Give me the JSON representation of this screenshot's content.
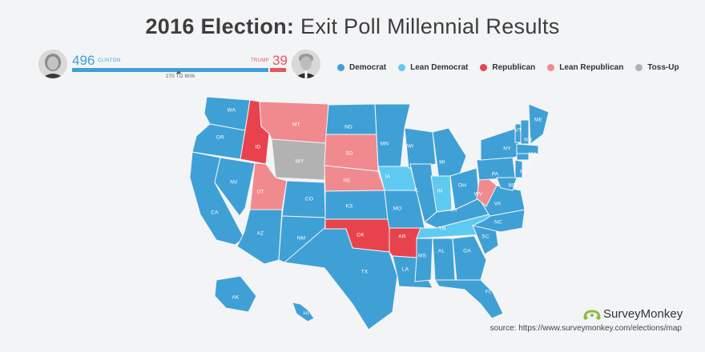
{
  "title": {
    "bold": "2016 Election:",
    "rest": "Exit Poll Millennial Results"
  },
  "tally": {
    "clinton": {
      "votes": "496",
      "label": "CLINTON",
      "color": "#3fa0d6"
    },
    "trump": {
      "votes": "39",
      "label": "TRUMP",
      "color": "#e8555c"
    },
    "to_win": "270 TO WIN"
  },
  "legend": [
    {
      "label": "Democrat",
      "color": "#3fa0d6",
      "icon": "dot"
    },
    {
      "label": "Lean Democrat",
      "color": "#5fcaf1",
      "icon": "dot"
    },
    {
      "label": "Republican",
      "color": "#e8434c",
      "icon": "dot"
    },
    {
      "label": "Lean Republican",
      "color": "#f08a8e",
      "icon": "dot"
    },
    {
      "label": "Toss-Up",
      "color": "#b2b2b2",
      "icon": "dot"
    }
  ],
  "states": {
    "WA": "Democrat",
    "OR": "Democrat",
    "CA": "Democrat",
    "NV": "Democrat",
    "ID": "Republican",
    "MT": "Lean Republican",
    "WY": "Toss-Up",
    "UT": "Lean Republican",
    "AZ": "Democrat",
    "CO": "Democrat",
    "NM": "Democrat",
    "ND": "Democrat",
    "SD": "Lean Republican",
    "NE": "Lean Republican",
    "KS": "Democrat",
    "OK": "Republican",
    "TX": "Democrat",
    "MN": "Democrat",
    "IA": "Lean Democrat",
    "MO": "Democrat",
    "AR": "Republican",
    "LA": "Democrat",
    "WI": "Democrat",
    "IL": "Democrat",
    "MI": "Democrat",
    "IN": "Lean Democrat",
    "OH": "Democrat",
    "KY": "Democrat",
    "TN": "Lean Democrat",
    "MS": "Democrat",
    "AL": "Democrat",
    "GA": "Democrat",
    "FL": "Democrat",
    "SC": "Democrat",
    "NC": "Democrat",
    "VA": "Democrat",
    "WV": "Lean Republican",
    "PA": "Democrat",
    "NY": "Democrat",
    "VT": "Democrat",
    "NH": "Democrat",
    "ME": "Democrat",
    "MA": "Democrat",
    "CT": "Democrat",
    "NJ": "Democrat",
    "MD": "Democrat",
    "AK": "Democrat",
    "HI": "Democrat"
  },
  "brand": "SurveyMonkey",
  "source": "source: https://www.surveymonkey.com/elections/map"
}
